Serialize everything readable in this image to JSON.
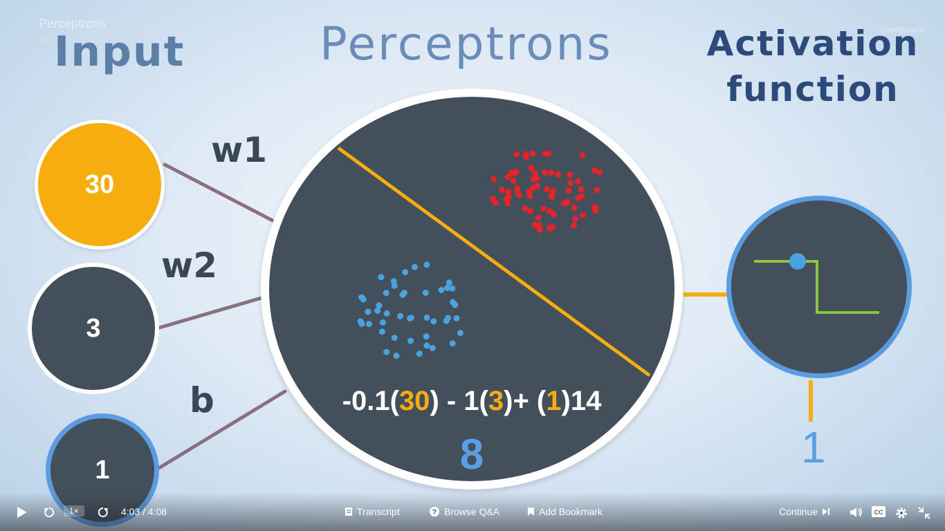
{
  "overlay": {
    "course_title": "Perceptrons",
    "course_subtitle": "Se",
    "dashboard_link": "Dashboard"
  },
  "slide": {
    "title": "Perceptrons",
    "input_heading": "Input",
    "activation_heading_line1": "Activation",
    "activation_heading_line2": "function",
    "weight1_label": "w1",
    "weight2_label": "w2",
    "bias_label": "b",
    "inputs": [
      {
        "value": "30",
        "color": "#f6ad10"
      },
      {
        "value": "3",
        "color": "#434f5a"
      },
      {
        "value": "1",
        "color": "#434f5a"
      }
    ],
    "equation": {
      "part1": "-0.1(",
      "x1": "30",
      "part2": ") - 1(",
      "x2": "3",
      "part3": ")+ (",
      "x3": "1",
      "part4": ")14"
    },
    "weighted_sum": "8",
    "output": "1",
    "colors": {
      "class_a": "#e3242b",
      "class_b": "#4aa3df",
      "decision_line": "#f6ad10",
      "step_function": "#8cc63f",
      "accent_blue": "#5b9be0"
    }
  },
  "player": {
    "speed": "1×",
    "time": "4:03 / 4:08",
    "transcript_label": "Transcript",
    "qa_label": "Browse Q&A",
    "bookmark_label": "Add Bookmark",
    "continue_label": "Continue"
  }
}
